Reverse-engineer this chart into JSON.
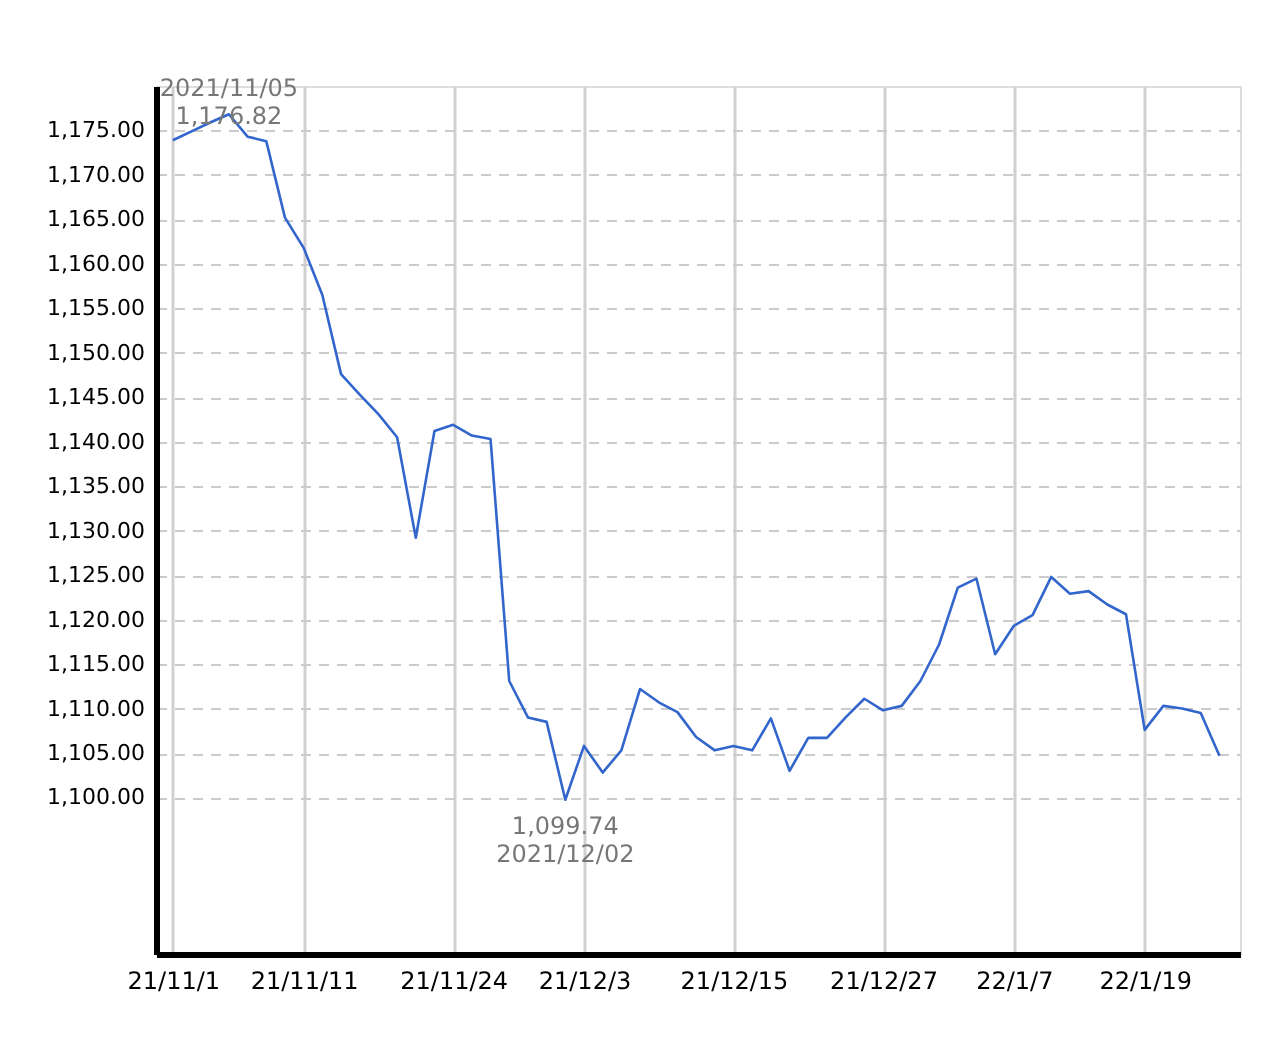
{
  "chart_data": {
    "type": "line",
    "categories": [
      "21/11/1",
      null,
      null,
      null,
      null,
      null,
      null,
      "21/11/11",
      null,
      null,
      null,
      null,
      null,
      null,
      null,
      "21/11/24",
      null,
      null,
      null,
      null,
      null,
      null,
      "21/12/3",
      null,
      null,
      null,
      null,
      null,
      null,
      null,
      "21/12/15",
      null,
      null,
      null,
      null,
      null,
      null,
      null,
      "21/12/27",
      null,
      null,
      null,
      null,
      null,
      null,
      "22/1/7",
      null,
      null,
      null,
      null,
      null,
      null,
      "22/1/19",
      null,
      null,
      null,
      null
    ],
    "series": [
      {
        "color": "#3366cc",
        "values": [
          1173.9,
          1174.9,
          1175.9,
          1176.82,
          1174.3,
          1173.8,
          1165.2,
          1161.8,
          1156.5,
          1147.6,
          1145.3,
          1143.1,
          1140.5,
          1129.2,
          1141.2,
          1141.9,
          1140.7,
          1140.3,
          1113.1,
          1109.0,
          1108.5,
          1099.74,
          1105.8,
          1102.8,
          1105.3,
          1112.2,
          1110.7,
          1109.6,
          1106.8,
          1105.3,
          1105.8,
          1105.3,
          1108.9,
          1103.0,
          1106.7,
          1106.7,
          1109.0,
          1111.1,
          1109.8,
          1110.3,
          1113.1,
          1117.2,
          1123.6,
          1124.6,
          1116.1,
          1119.3,
          1120.5,
          1124.8,
          1122.9,
          1123.2,
          1121.7,
          1120.6,
          1107.6,
          1110.3,
          1110.0,
          1109.5,
          1104.7
        ]
      }
    ],
    "ylim": [
      1082.4,
      1180
    ],
    "yticks": [
      {
        "value": 1100,
        "label": "1,100.00"
      },
      {
        "value": 1105,
        "label": "1,105.00"
      },
      {
        "value": 1110,
        "label": "1,110.00"
      },
      {
        "value": 1115,
        "label": "1,115.00"
      },
      {
        "value": 1120,
        "label": "1,120.00"
      },
      {
        "value": 1125,
        "label": "1,125.00"
      },
      {
        "value": 1130,
        "label": "1,130.00"
      },
      {
        "value": 1135,
        "label": "1,135.00"
      },
      {
        "value": 1140,
        "label": "1,140.00"
      },
      {
        "value": 1145,
        "label": "1,145.00"
      },
      {
        "value": 1150,
        "label": "1,150.00"
      },
      {
        "value": 1155,
        "label": "1,155.00"
      },
      {
        "value": 1160,
        "label": "1,160.00"
      },
      {
        "value": 1165,
        "label": "1,165.00"
      },
      {
        "value": 1170,
        "label": "1,170.00"
      },
      {
        "value": 1175,
        "label": "1,175.00"
      }
    ],
    "annotations": [
      {
        "text": "2021/11/05\n1,176.82",
        "y": 1176.82
      },
      {
        "text": "1,099.74\n2021/12/02",
        "y": 1099.74
      }
    ],
    "grid": true,
    "marker": "none",
    "line_style": "solid"
  }
}
